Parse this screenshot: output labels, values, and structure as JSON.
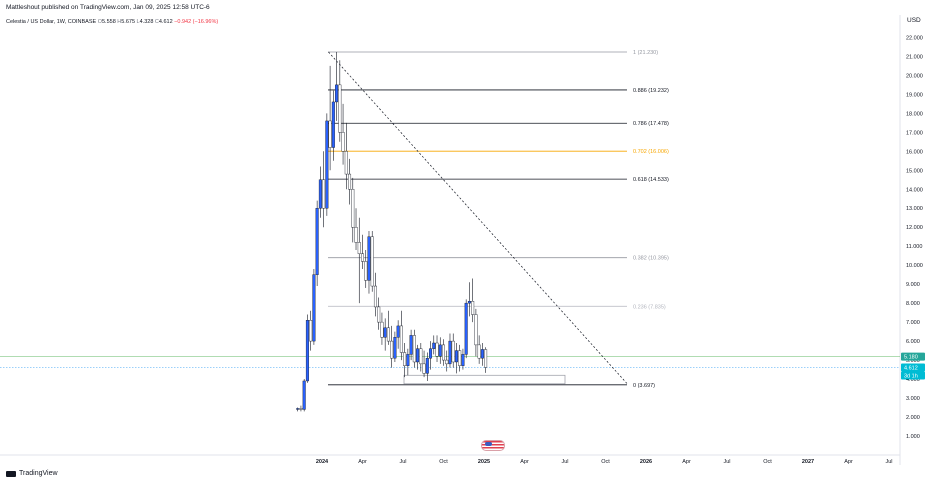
{
  "header": {
    "published_text": "Mattleshout published on TradingView.com, Jan 09, 2025 12:58 UTC-6",
    "symbol": "Celestia / US Dollar, 1W, COINBASE",
    "ohlc": [
      {
        "key": "O",
        "value": "5.558"
      },
      {
        "key": "H",
        "value": "5.675"
      },
      {
        "key": "L",
        "value": "4.328"
      },
      {
        "key": "C",
        "value": "4.612"
      }
    ],
    "change": "−0.942 (−16.96%)"
  },
  "axis": {
    "currency": "USD"
  },
  "footer": {
    "brand": "TradingView"
  },
  "colors": {
    "up": "#2962ff",
    "down": "#787b86",
    "text": "#131722",
    "fib_gold": "#f7a600",
    "current_price_bg": "#26a69a",
    "green_line": "#4caf50"
  },
  "chart_data": {
    "type": "candlestick",
    "title": "Celestia / US Dollar, 1W, COINBASE",
    "ylim": [
      0,
      22.8
    ],
    "y_ticks": [
      "1.000",
      "2.000",
      "3.000",
      "4.000",
      "5.000",
      "6.000",
      "7.000",
      "8.000",
      "9.000",
      "10.000",
      "11.000",
      "12.000",
      "13.000",
      "14.000",
      "15.000",
      "16.000",
      "17.000",
      "18.000",
      "19.000",
      "20.000",
      "21.000",
      "22.000"
    ],
    "x_ticks": [
      {
        "label": "2024",
        "date": 2024.0,
        "bold": true
      },
      {
        "label": "Apr",
        "date": 2024.25
      },
      {
        "label": "Jul",
        "date": 2024.5
      },
      {
        "label": "Oct",
        "date": 2024.75
      },
      {
        "label": "2025",
        "date": 2025.0,
        "bold": true
      },
      {
        "label": "Apr",
        "date": 2025.25
      },
      {
        "label": "Jul",
        "date": 2025.5
      },
      {
        "label": "Oct",
        "date": 2025.75
      },
      {
        "label": "2026",
        "date": 2026.0,
        "bold": true
      },
      {
        "label": "Apr",
        "date": 2026.25
      },
      {
        "label": "Jul",
        "date": 2026.5
      },
      {
        "label": "Oct",
        "date": 2026.75
      },
      {
        "label": "2027",
        "date": 2027.0,
        "bold": true
      },
      {
        "label": "Apr",
        "date": 2027.25
      },
      {
        "label": "Jul",
        "date": 2027.5
      }
    ],
    "fib_levels": [
      {
        "label": "1 (21.230)",
        "value": 21.23,
        "color": "#9598a1"
      },
      {
        "label": "0.886 (19.232)",
        "value": 19.232,
        "color": "#131722"
      },
      {
        "label": "0.786 (17.478)",
        "value": 17.478,
        "color": "#131722"
      },
      {
        "label": "0.702 (16.006)",
        "value": 16.006,
        "color": "#f7a600"
      },
      {
        "label": "0.618 (14.533)",
        "value": 14.533,
        "color": "#131722"
      },
      {
        "label": "0.382 (10.395)",
        "value": 10.395,
        "color": "#9598a1"
      },
      {
        "label": "0.236 (7.835)",
        "value": 7.835,
        "color": "#b2b5be"
      },
      {
        "label": "0 (3.697)",
        "value": 3.697,
        "color": "#131722"
      }
    ],
    "price_labels": [
      {
        "text": "5.180",
        "value": 5.18,
        "bg": "#26a69a"
      },
      {
        "text": "4.612",
        "value": 4.612,
        "bg": "#00bcd4"
      },
      {
        "text": "3d 1h",
        "value": 4.3,
        "bg": "#00bcd4"
      }
    ],
    "horizontal_lines": [
      {
        "value": 5.18,
        "color": "#4caf50",
        "style": "solid"
      },
      {
        "value": 4.612,
        "color": "#2196f3",
        "style": "dotted"
      }
    ],
    "trend_line": {
      "from": {
        "date": 2024.04,
        "value": 21.23
      },
      "to": {
        "date": 2025.89,
        "value": 3.697
      }
    },
    "box": {
      "from": {
        "date": 2024.5,
        "value": 4.2
      },
      "to": {
        "date": 2025.5,
        "value": 3.75
      }
    },
    "candles": [
      {
        "t": 2023.85,
        "o": 2.4,
        "h": 2.5,
        "l": 2.3,
        "c": 2.45
      },
      {
        "t": 2023.87,
        "o": 2.45,
        "h": 2.6,
        "l": 2.3,
        "c": 2.4
      },
      {
        "t": 2023.89,
        "o": 2.4,
        "h": 4.0,
        "l": 2.3,
        "c": 3.9
      },
      {
        "t": 2023.91,
        "o": 3.9,
        "h": 7.4,
        "l": 3.8,
        "c": 7.1
      },
      {
        "t": 2023.93,
        "o": 7.1,
        "h": 7.6,
        "l": 5.5,
        "c": 6.0
      },
      {
        "t": 2023.95,
        "o": 6.0,
        "h": 9.8,
        "l": 5.8,
        "c": 9.5
      },
      {
        "t": 2023.97,
        "o": 9.5,
        "h": 13.4,
        "l": 8.9,
        "c": 13.0
      },
      {
        "t": 2023.99,
        "o": 13.0,
        "h": 15.2,
        "l": 12.5,
        "c": 14.5
      },
      {
        "t": 2024.01,
        "o": 14.5,
        "h": 16.0,
        "l": 12.0,
        "c": 13.0
      },
      {
        "t": 2024.03,
        "o": 13.0,
        "h": 18.0,
        "l": 12.6,
        "c": 17.6
      },
      {
        "t": 2024.05,
        "o": 17.6,
        "h": 20.5,
        "l": 15.0,
        "c": 16.2
      },
      {
        "t": 2024.07,
        "o": 16.2,
        "h": 19.2,
        "l": 15.5,
        "c": 18.6
      },
      {
        "t": 2024.09,
        "o": 18.6,
        "h": 21.23,
        "l": 17.6,
        "c": 19.5
      },
      {
        "t": 2024.11,
        "o": 19.5,
        "h": 20.8,
        "l": 16.5,
        "c": 17.0
      },
      {
        "t": 2024.13,
        "o": 17.0,
        "h": 18.5,
        "l": 15.3,
        "c": 16.0
      },
      {
        "t": 2024.15,
        "o": 16.0,
        "h": 17.5,
        "l": 14.0,
        "c": 14.8
      },
      {
        "t": 2024.17,
        "o": 14.8,
        "h": 15.6,
        "l": 13.2,
        "c": 14.0
      },
      {
        "t": 2024.19,
        "o": 14.0,
        "h": 14.6,
        "l": 11.2,
        "c": 12.0
      },
      {
        "t": 2024.21,
        "o": 12.0,
        "h": 13.0,
        "l": 10.8,
        "c": 11.2
      },
      {
        "t": 2024.23,
        "o": 11.2,
        "h": 12.5,
        "l": 8.0,
        "c": 10.6
      },
      {
        "t": 2024.25,
        "o": 10.6,
        "h": 11.6,
        "l": 9.8,
        "c": 10.2
      },
      {
        "t": 2024.27,
        "o": 10.2,
        "h": 10.8,
        "l": 8.8,
        "c": 9.2
      },
      {
        "t": 2024.29,
        "o": 9.2,
        "h": 11.8,
        "l": 8.5,
        "c": 11.5
      },
      {
        "t": 2024.31,
        "o": 11.5,
        "h": 11.8,
        "l": 8.6,
        "c": 8.9
      },
      {
        "t": 2024.33,
        "o": 8.9,
        "h": 9.6,
        "l": 7.3,
        "c": 7.8
      },
      {
        "t": 2024.35,
        "o": 7.8,
        "h": 8.3,
        "l": 6.6,
        "c": 7.0
      },
      {
        "t": 2024.37,
        "o": 7.0,
        "h": 7.5,
        "l": 5.8,
        "c": 6.2
      },
      {
        "t": 2024.39,
        "o": 6.2,
        "h": 7.2,
        "l": 5.5,
        "c": 6.7
      },
      {
        "t": 2024.41,
        "o": 6.7,
        "h": 7.6,
        "l": 5.8,
        "c": 6.0
      },
      {
        "t": 2024.43,
        "o": 6.0,
        "h": 6.8,
        "l": 4.6,
        "c": 5.1
      },
      {
        "t": 2024.45,
        "o": 5.1,
        "h": 6.5,
        "l": 4.9,
        "c": 6.2
      },
      {
        "t": 2024.47,
        "o": 6.2,
        "h": 7.1,
        "l": 5.6,
        "c": 6.8
      },
      {
        "t": 2024.49,
        "o": 6.8,
        "h": 7.6,
        "l": 5.0,
        "c": 5.4
      },
      {
        "t": 2024.51,
        "o": 5.4,
        "h": 5.9,
        "l": 4.1,
        "c": 4.7
      },
      {
        "t": 2024.53,
        "o": 4.7,
        "h": 5.6,
        "l": 4.2,
        "c": 5.3
      },
      {
        "t": 2024.55,
        "o": 5.3,
        "h": 6.6,
        "l": 5.0,
        "c": 6.3
      },
      {
        "t": 2024.57,
        "o": 6.3,
        "h": 6.6,
        "l": 4.6,
        "c": 4.9
      },
      {
        "t": 2024.59,
        "o": 4.9,
        "h": 5.8,
        "l": 4.5,
        "c": 5.6
      },
      {
        "t": 2024.61,
        "o": 5.6,
        "h": 5.9,
        "l": 4.4,
        "c": 4.8
      },
      {
        "t": 2024.63,
        "o": 4.8,
        "h": 5.5,
        "l": 4.1,
        "c": 4.3
      },
      {
        "t": 2024.65,
        "o": 4.3,
        "h": 5.4,
        "l": 3.9,
        "c": 5.1
      },
      {
        "t": 2024.67,
        "o": 5.1,
        "h": 6.0,
        "l": 4.5,
        "c": 5.6
      },
      {
        "t": 2024.69,
        "o": 5.6,
        "h": 6.3,
        "l": 5.3,
        "c": 5.9
      },
      {
        "t": 2024.71,
        "o": 5.9,
        "h": 6.3,
        "l": 4.9,
        "c": 5.2
      },
      {
        "t": 2024.73,
        "o": 5.2,
        "h": 6.2,
        "l": 4.8,
        "c": 5.8
      },
      {
        "t": 2024.75,
        "o": 5.8,
        "h": 6.1,
        "l": 4.7,
        "c": 5.0
      },
      {
        "t": 2024.77,
        "o": 5.0,
        "h": 5.5,
        "l": 4.4,
        "c": 4.8
      },
      {
        "t": 2024.79,
        "o": 4.8,
        "h": 6.4,
        "l": 4.6,
        "c": 6.0
      },
      {
        "t": 2024.81,
        "o": 6.0,
        "h": 6.4,
        "l": 4.6,
        "c": 4.9
      },
      {
        "t": 2024.83,
        "o": 4.9,
        "h": 5.9,
        "l": 4.3,
        "c": 5.5
      },
      {
        "t": 2024.85,
        "o": 5.5,
        "h": 5.8,
        "l": 4.4,
        "c": 4.7
      },
      {
        "t": 2024.87,
        "o": 4.7,
        "h": 5.6,
        "l": 4.5,
        "c": 5.3
      },
      {
        "t": 2024.89,
        "o": 5.3,
        "h": 8.2,
        "l": 5.1,
        "c": 8.0
      },
      {
        "t": 2024.91,
        "o": 8.0,
        "h": 9.1,
        "l": 7.3,
        "c": 8.1
      },
      {
        "t": 2024.93,
        "o": 8.1,
        "h": 9.3,
        "l": 7.0,
        "c": 7.4
      },
      {
        "t": 2024.95,
        "o": 7.4,
        "h": 7.7,
        "l": 5.2,
        "c": 5.8
      },
      {
        "t": 2024.97,
        "o": 5.8,
        "h": 6.3,
        "l": 4.8,
        "c": 5.1
      },
      {
        "t": 2024.99,
        "o": 5.1,
        "h": 5.9,
        "l": 4.7,
        "c": 5.56
      },
      {
        "t": 2025.01,
        "o": 5.558,
        "h": 5.675,
        "l": 4.328,
        "c": 4.612
      }
    ]
  }
}
